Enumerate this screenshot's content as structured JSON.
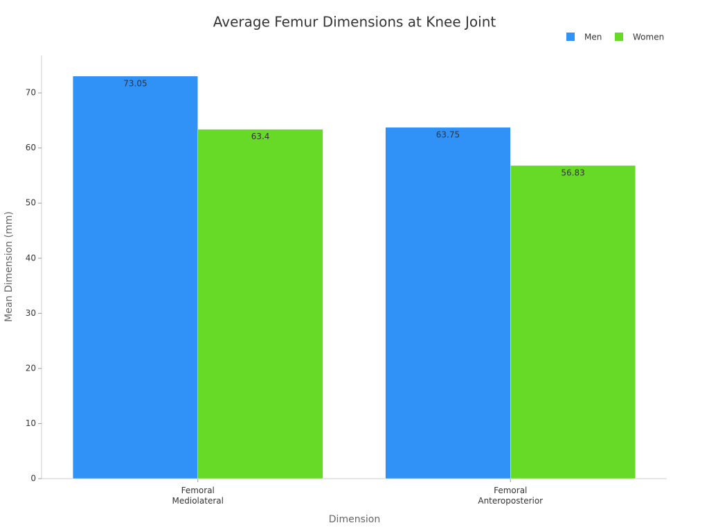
{
  "chart_data": {
    "type": "bar",
    "title": "Average Femur Dimensions at Knee Joint",
    "x_label": "Dimension",
    "y_label": "Mean Dimension (mm)",
    "categories": [
      "Femoral Mediolateral",
      "Femoral Anteroposterior"
    ],
    "series": [
      {
        "name": "Men",
        "color": "#3091f7",
        "values": [
          73.05,
          63.75
        ]
      },
      {
        "name": "Women",
        "color": "#66da26",
        "values": [
          63.4,
          56.83
        ]
      }
    ],
    "ylim": [
      0,
      76.8
    ],
    "yticks": [
      0,
      10,
      20,
      30,
      40,
      50,
      60,
      70
    ],
    "legend": "top-right",
    "value_labels_shown": true
  }
}
